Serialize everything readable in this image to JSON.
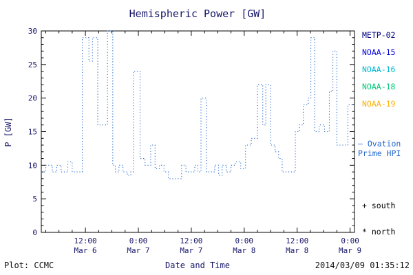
{
  "chart_data": {
    "type": "line",
    "title": "Hemispheric Power [GW]",
    "xlabel": "Date and Time",
    "ylabel": "P [GW]",
    "ylim": [
      0,
      30
    ],
    "yticks": [
      0,
      5,
      10,
      15,
      20,
      25,
      30
    ],
    "x_domain_hours": [
      2,
      73
    ],
    "xticks": [
      {
        "t": 12,
        "time": "12:00",
        "date": "Mar 6"
      },
      {
        "t": 24,
        "time": "0:00",
        "date": "Mar 7"
      },
      {
        "t": 36,
        "time": "12:00",
        "date": "Mar 7"
      },
      {
        "t": 48,
        "time": "0:00",
        "date": "Mar 8"
      },
      {
        "t": 60,
        "time": "12:00",
        "date": "Mar 8"
      },
      {
        "t": 72,
        "time": "0:00",
        "date": "Mar 9"
      }
    ],
    "grid": false,
    "line_style": "dotted-step",
    "line_color": "#2266cc",
    "series": [
      {
        "name": "Ovation Prime HPI",
        "points": [
          [
            2,
            9
          ],
          [
            3,
            10
          ],
          [
            4.5,
            9
          ],
          [
            5.5,
            10
          ],
          [
            6.5,
            9
          ],
          [
            7.5,
            9
          ],
          [
            8,
            10.5
          ],
          [
            9,
            9
          ],
          [
            10.5,
            9
          ],
          [
            11.3,
            29
          ],
          [
            12.8,
            25.5
          ],
          [
            13.6,
            29
          ],
          [
            14.8,
            16
          ],
          [
            17,
            30
          ],
          [
            18.2,
            10
          ],
          [
            18.8,
            9
          ],
          [
            19.6,
            10
          ],
          [
            20.5,
            9
          ],
          [
            21.5,
            8.5
          ],
          [
            22.3,
            9
          ],
          [
            22.9,
            24
          ],
          [
            24.4,
            11
          ],
          [
            25.5,
            10
          ],
          [
            26.8,
            13
          ],
          [
            27.8,
            9.5
          ],
          [
            28.8,
            10
          ],
          [
            29.8,
            9
          ],
          [
            30.8,
            8
          ],
          [
            33.8,
            10
          ],
          [
            34.8,
            9
          ],
          [
            35.8,
            9
          ],
          [
            36.8,
            10
          ],
          [
            37.5,
            9
          ],
          [
            38.2,
            20
          ],
          [
            39.4,
            9
          ],
          [
            40.5,
            9
          ],
          [
            41.3,
            10
          ],
          [
            42.2,
            8.5
          ],
          [
            43,
            10
          ],
          [
            44,
            9
          ],
          [
            45,
            10
          ],
          [
            46,
            10.5
          ],
          [
            47.2,
            9.5
          ],
          [
            48.3,
            13
          ],
          [
            49.6,
            14
          ],
          [
            51,
            22
          ],
          [
            52.2,
            16
          ],
          [
            52.9,
            22
          ],
          [
            54,
            13
          ],
          [
            55,
            12
          ],
          [
            55.8,
            11
          ],
          [
            56.6,
            9
          ],
          [
            59.6,
            15
          ],
          [
            60.5,
            16
          ],
          [
            61.4,
            19
          ],
          [
            62.5,
            20
          ],
          [
            63.1,
            29
          ],
          [
            64,
            15
          ],
          [
            65,
            16
          ],
          [
            66.2,
            15
          ],
          [
            67.3,
            21
          ],
          [
            68.1,
            27
          ],
          [
            69,
            13
          ],
          [
            71.5,
            19
          ],
          [
            73,
            19
          ]
        ]
      }
    ]
  },
  "legend": {
    "satellites": [
      {
        "label": "METP-02",
        "color": "#000080"
      },
      {
        "label": "NOAA-15",
        "color": "#0000e0"
      },
      {
        "label": "NOAA-16",
        "color": "#00b8d4"
      },
      {
        "label": "NOAA-18",
        "color": "#00c878"
      },
      {
        "label": "NOAA-19",
        "color": "#ffb000"
      }
    ],
    "line_entry": {
      "dash": "—",
      "label_line1": "Ovation",
      "label_line2": "Prime HPI",
      "color": "#2266cc"
    },
    "markers": [
      {
        "symbol": "+",
        "label": "south",
        "color": "#000000"
      },
      {
        "symbol": "*",
        "label": "north",
        "color": "#000000"
      }
    ]
  },
  "footer": {
    "plot_credit": "Plot: CCMC",
    "timestamp": "2014/03/09 01:35:12"
  },
  "colors": {
    "title_text": "#16166b",
    "axis_text": "#16166b",
    "frame": "#000000",
    "footer_text": "#111111"
  }
}
